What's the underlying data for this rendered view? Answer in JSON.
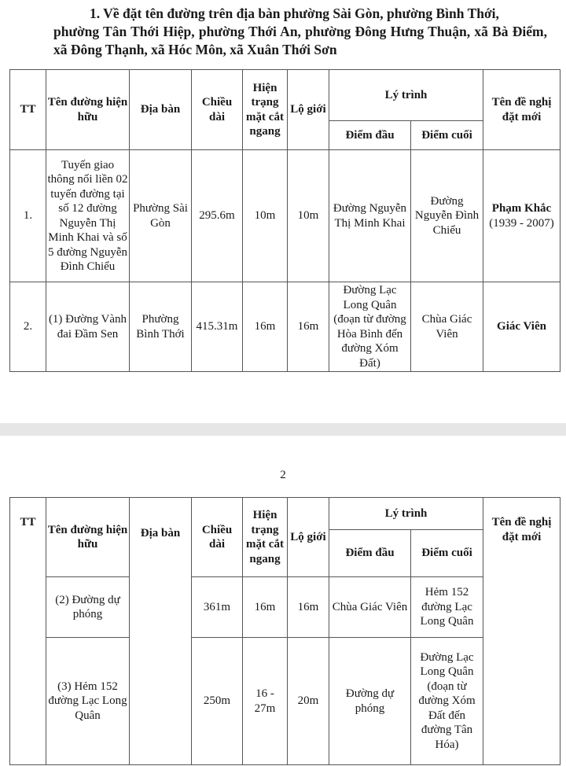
{
  "heading": {
    "line1": "1. Về đặt tên đường trên địa bàn phường Sài Gòn, phường Bình Thới,",
    "rest": "phường Tân Thới Hiệp, phường Thới An, phường Đông Hưng Thuận, xã Bà Điểm, xã Đông Thạnh, xã Hóc Môn, xã Xuân Thới Sơn"
  },
  "columns": {
    "tt": "TT",
    "current_name": "Tên đường hiện hữu",
    "area": "Địa bàn",
    "length": "Chiều dài",
    "cross_section": "Hiện trạng mặt cắt ngang",
    "row_boundary": "Lộ giới",
    "route": "Lý trình",
    "start": "Điểm đầu",
    "end": "Điểm cuối",
    "proposed_name": "Tên đề nghị đặt mới"
  },
  "table1_rows": [
    {
      "tt": "1.",
      "current_name": "Tuyến giao thông nối liền 02 tuyến đường tại số 12 đường Nguyễn Thị Minh Khai và số 5 đường Nguyễn Đình Chiểu",
      "area": "Phường Sài Gòn",
      "length": "295.6m",
      "cross_section": "10m",
      "row_boundary": "10m",
      "start": "Đường Nguyễn Thị Minh Khai",
      "end": "Đường Nguyễn Đình Chiểu",
      "proposed_name": "Phạm Khắc",
      "proposed_note": "(1939 - 2007)"
    },
    {
      "tt": "2.",
      "current_name": "(1) Đường Vành đai Đầm Sen",
      "area": "Phường Bình Thới",
      "length": "415.31m",
      "cross_section": "16m",
      "row_boundary": "16m",
      "start": "Đường Lạc Long Quân (đoạn từ đường Hòa Bình đến đường Xóm Đất)",
      "end": "Chùa Giác Viên",
      "proposed_name": "Giác Viên"
    }
  ],
  "page_number": "2",
  "table2_rows": [
    {
      "current_name": "(2) Đường dự phóng",
      "length": "361m",
      "cross_section": "16m",
      "row_boundary": "16m",
      "start": "Chùa Giác Viên",
      "end": "Hẻm 152 đường Lạc Long Quân"
    },
    {
      "current_name": "(3) Hẻm 152 đường Lạc Long Quân",
      "length": "250m",
      "cross_section": "16 - 27m",
      "row_boundary": "20m",
      "start": "Đường dự phóng",
      "end": "Đường Lạc Long Quân (đoạn từ đường Xóm Đất đến đường Tân Hóa)"
    }
  ]
}
